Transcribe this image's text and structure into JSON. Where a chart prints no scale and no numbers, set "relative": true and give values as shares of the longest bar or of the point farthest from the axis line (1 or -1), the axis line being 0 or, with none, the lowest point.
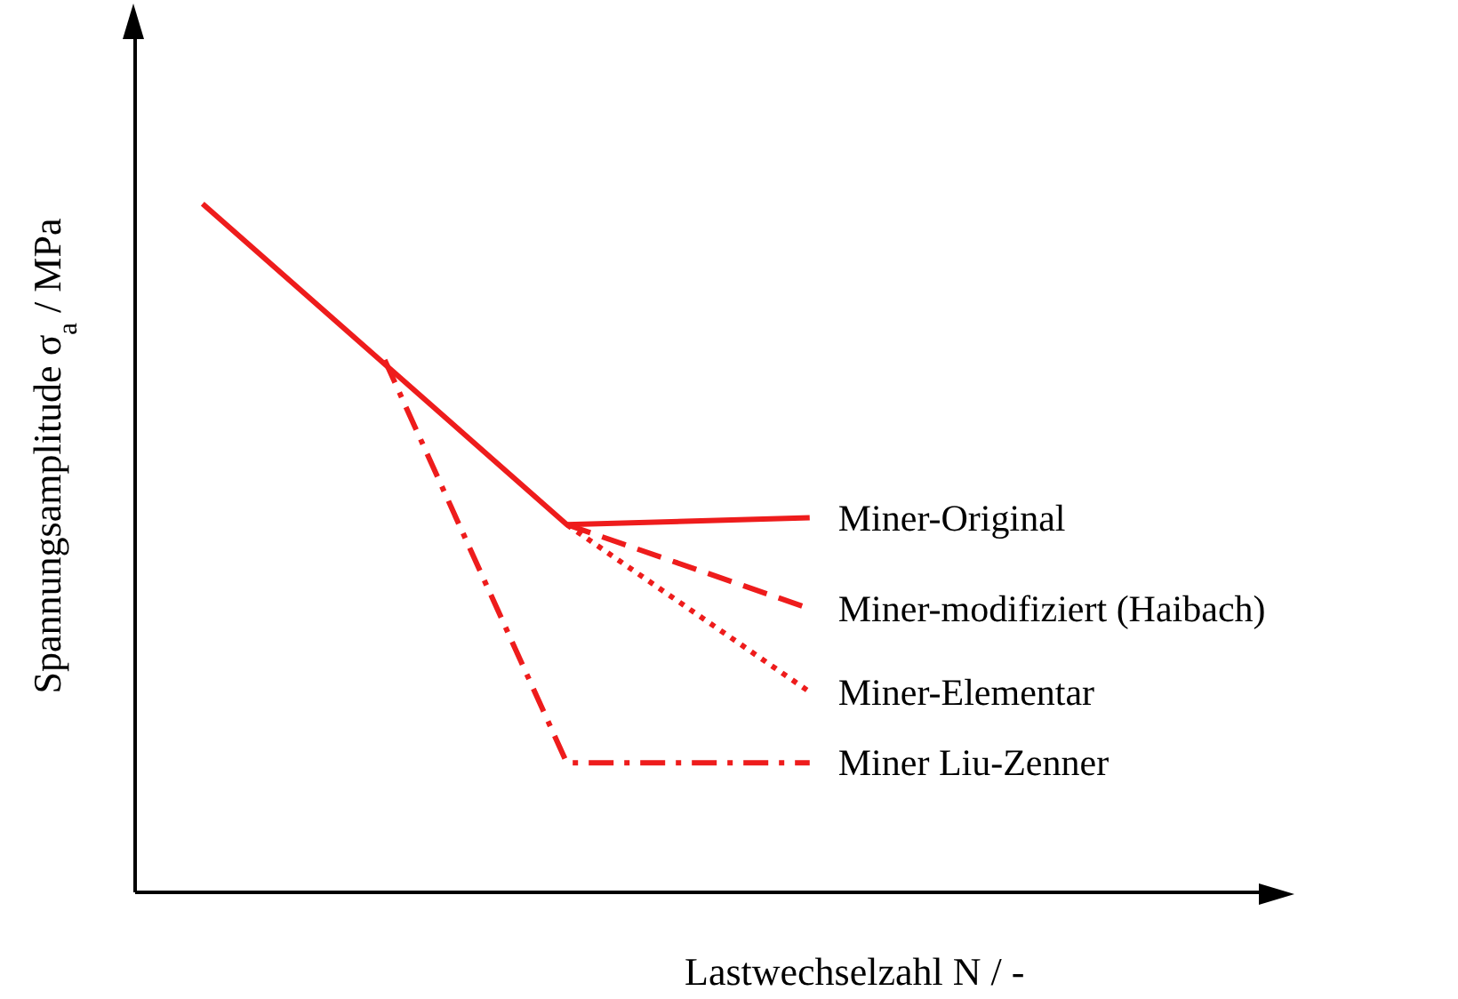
{
  "chart_data": {
    "type": "line",
    "relative": true,
    "xlabel": "Lastwechselzahl   N   /   -",
    "ylabel": "Spannungsamplitude   σ$_{a}$   /   MPa",
    "legend": false,
    "grid": false,
    "marker": "none",
    "categories": [
      null,
      null,
      null,
      null,
      null,
      null,
      null,
      null,
      null,
      null,
      null
    ],
    "series": [
      {
        "name": "Miner-Original",
        "color": "#ee1c1c",
        "line_style": "solid",
        "values": [
          1,
          null,
          null,
          null,
          null,
          null,
          0.534,
          null,
          null,
          null,
          0.544
        ]
      },
      {
        "name": "Miner-modifiziert (Haibach)",
        "color": "#ee1c1c",
        "line_style": "dashed",
        "values": [
          null,
          null,
          null,
          null,
          null,
          null,
          0.534,
          null,
          null,
          null,
          0.412
        ]
      },
      {
        "name": "Miner-Elementar",
        "color": "#ee1c1c",
        "line_style": "dotted",
        "values": [
          null,
          null,
          null,
          null,
          null,
          null,
          0.534,
          null,
          null,
          null,
          0.291
        ]
      },
      {
        "name": "Miner Liu-Zenner",
        "color": "#ee1c1c",
        "line_style": "dashdot",
        "values": [
          null,
          null,
          null,
          0.773,
          null,
          null,
          0.188,
          null,
          null,
          null,
          0.188
        ]
      }
    ]
  }
}
